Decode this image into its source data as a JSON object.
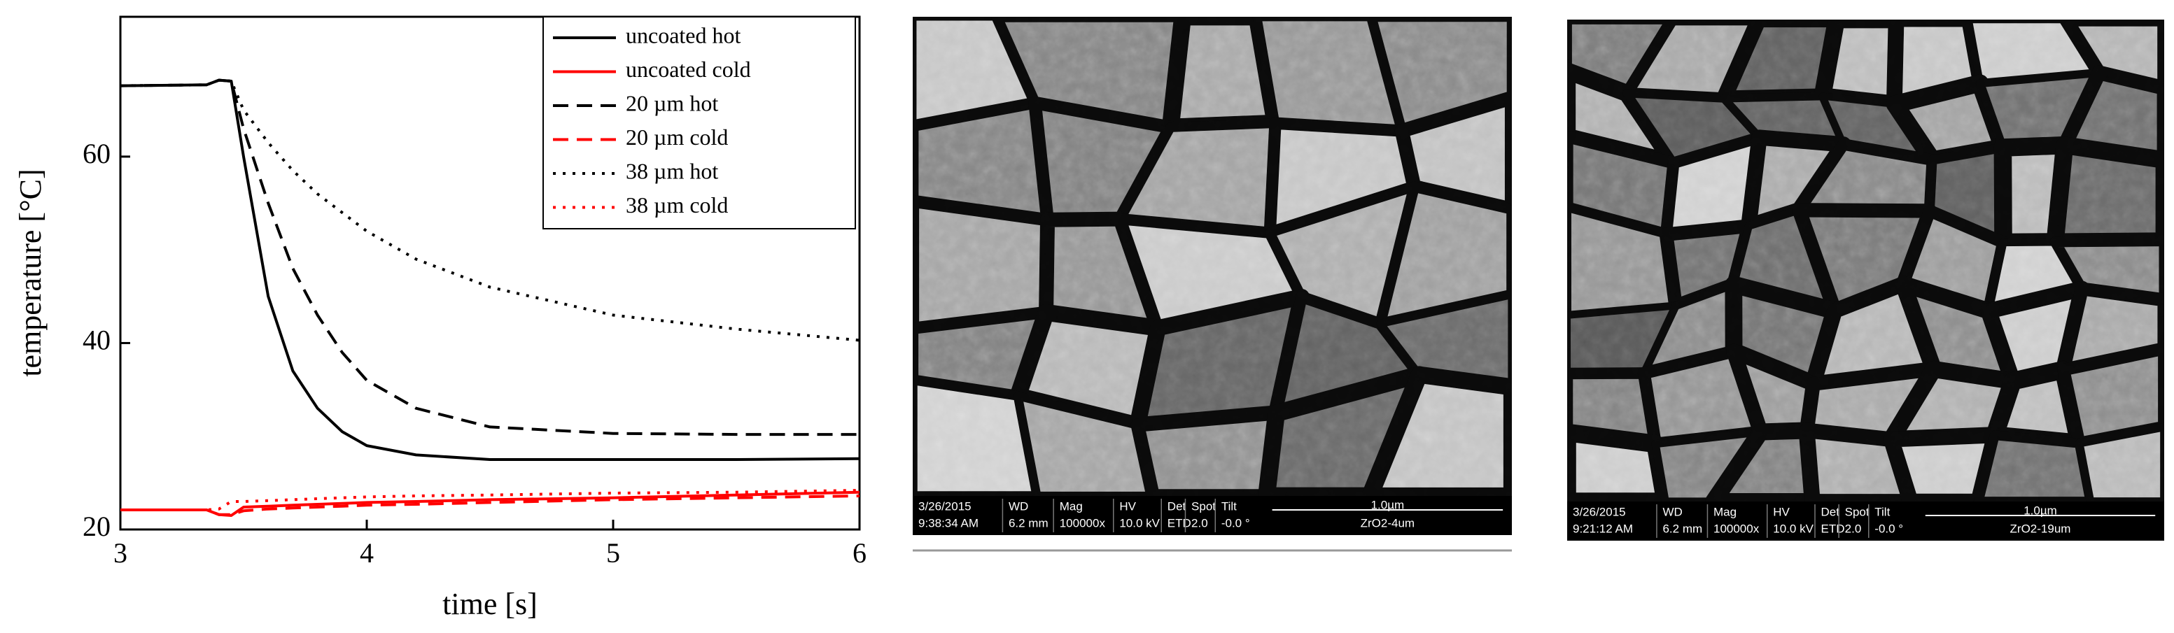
{
  "chart_data": {
    "type": "line",
    "xlabel": "time [s]",
    "ylabel": "temperature [°C]",
    "x": [
      3,
      3.35,
      3.4,
      3.45,
      3.5,
      3.6,
      3.7,
      3.8,
      3.9,
      4.0,
      4.2,
      4.5,
      5,
      5.5,
      6
    ],
    "series": [
      {
        "name": "uncoated hot",
        "color": "#000000",
        "dash": "solid",
        "values": [
          67.6,
          67.7,
          68.2,
          68.1,
          60,
          45,
          37,
          33,
          30.5,
          29,
          28,
          27.5,
          27.5,
          27.5,
          27.6
        ]
      },
      {
        "name": "uncoated cold",
        "color": "#ff0000",
        "dash": "solid",
        "values": [
          22.1,
          22.1,
          21.6,
          21.5,
          22.4,
          22.5,
          22.6,
          22.7,
          22.8,
          22.9,
          23,
          23.2,
          23.4,
          23.7,
          24
        ]
      },
      {
        "name": "20 µm hot",
        "color": "#000000",
        "dash": "dashed",
        "values": [
          67.6,
          67.7,
          68.2,
          68.1,
          63,
          55,
          48,
          43,
          39,
          36,
          33,
          31,
          30.3,
          30.2,
          30.2
        ]
      },
      {
        "name": "20 µm cold",
        "color": "#ff0000",
        "dash": "dashed",
        "values": [
          22.1,
          22.1,
          21.6,
          21.6,
          22,
          22.2,
          22.3,
          22.4,
          22.5,
          22.6,
          22.7,
          22.9,
          23.2,
          23.4,
          23.6
        ]
      },
      {
        "name": "38 µm hot",
        "color": "#000000",
        "dash": "dotted",
        "values": [
          67.6,
          67.7,
          68.2,
          68.1,
          65,
          61.5,
          58.5,
          56,
          54,
          52,
          49,
          46,
          43,
          41.5,
          40.3
        ]
      },
      {
        "name": "38 µm cold",
        "color": "#ff0000",
        "dash": "dotted",
        "values": [
          22.1,
          22.1,
          22.2,
          23,
          23,
          23.1,
          23.2,
          23.3,
          23.4,
          23.5,
          23.6,
          23.7,
          23.9,
          24,
          24.2
        ]
      }
    ],
    "xlim": [
      3,
      6
    ],
    "xticks": [
      3,
      4,
      5,
      6
    ],
    "ylim": [
      20,
      75
    ],
    "yticks": [
      20,
      40,
      60
    ],
    "legend": "upper right",
    "grid": false
  },
  "images": [
    {
      "date": "3/26/2015",
      "time": "9:38:34 AM",
      "columns": [
        {
          "head": "WD",
          "value": "6.2 mm"
        },
        {
          "head": "Mag",
          "value": "100000x"
        },
        {
          "head": "HV",
          "value": "10.0 kV"
        },
        {
          "head": "Det",
          "value": "ETD"
        },
        {
          "head": "Spot",
          "value": "2.0"
        },
        {
          "head": "Tilt",
          "value": "-0.0 °"
        }
      ],
      "scale": "1.0µm",
      "sample": "ZrO2-4um"
    },
    {
      "date": "3/26/2015",
      "time": "9:21:12 AM",
      "columns": [
        {
          "head": "WD",
          "value": "6.2 mm"
        },
        {
          "head": "Mag",
          "value": "100000x"
        },
        {
          "head": "HV",
          "value": "10.0 kV"
        },
        {
          "head": "Det",
          "value": "ETD"
        },
        {
          "head": "Spot",
          "value": "2.0"
        },
        {
          "head": "Tilt",
          "value": "-0.0 °"
        }
      ],
      "scale": "1.0µm",
      "sample": "ZrO2-19um"
    }
  ]
}
